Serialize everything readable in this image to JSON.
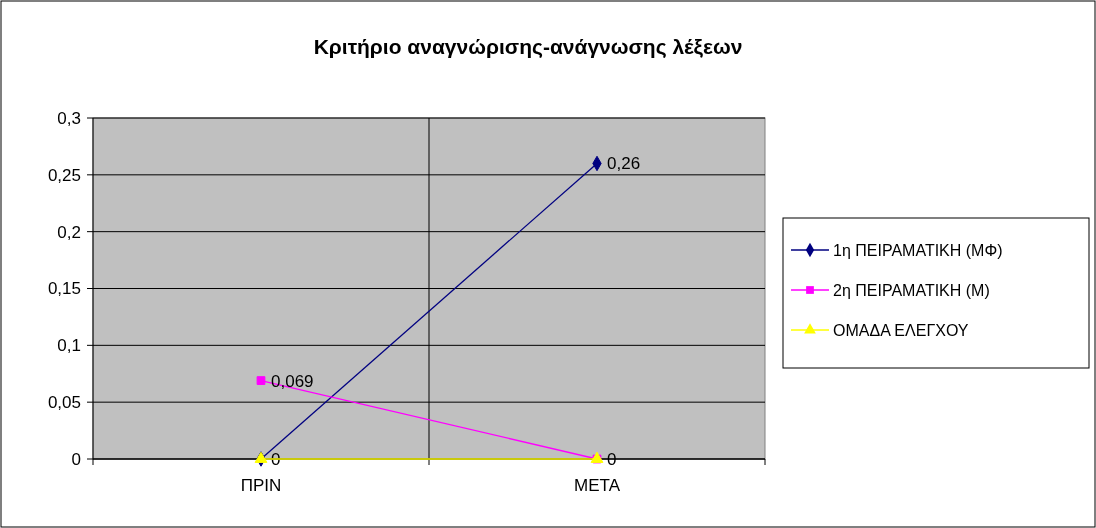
{
  "chart_data": {
    "type": "line",
    "title": "Κριτήριο αναγνώρισης-ανάγνωσης λέξεων",
    "categories": [
      "ΠΡΙΝ",
      "ΜΕΤΑ"
    ],
    "series": [
      {
        "name": "1η ΠΕΙΡΑΜΑΤΙΚΗ (ΜΦ)",
        "color": "#000080",
        "marker": "diamond",
        "values": [
          0,
          0.26
        ],
        "value_labels": [
          "0",
          "0,26"
        ]
      },
      {
        "name": "2η ΠΕΙΡΑΜΑΤΙΚΗ (Μ)",
        "color": "#ff00ff",
        "marker": "square",
        "values": [
          0.069,
          0
        ],
        "value_labels": [
          "0,069",
          "0"
        ]
      },
      {
        "name": "ΟΜΑΔΑ ΕΛΕΓΧΟΥ",
        "color": "#ffff00",
        "marker": "triangle",
        "values": [
          0,
          0
        ]
      }
    ],
    "ylim": [
      0,
      0.3
    ],
    "yticks": [
      0,
      {
        "value": 0.05,
        "label": "0,05"
      },
      {
        "value": 0.1,
        "label": "0,1"
      },
      {
        "value": 0.15,
        "label": "0,15"
      },
      {
        "value": 0.2,
        "label": "0,2"
      },
      {
        "value": 0.25,
        "label": "0,25"
      },
      {
        "value": 0.3,
        "label": "0,3"
      }
    ],
    "grid": true,
    "legend": "right"
  }
}
